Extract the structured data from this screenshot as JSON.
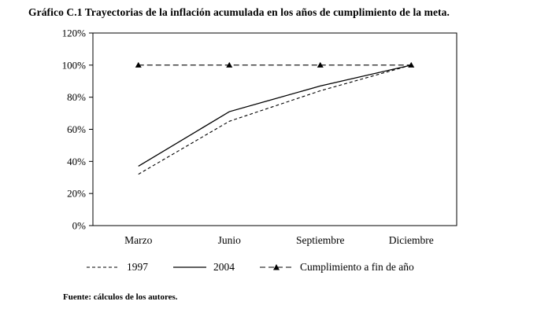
{
  "source_note": "Fuente: cálculos de los autores.",
  "chart_data": {
    "type": "line",
    "title": "Gráfico C.1 Trayectorias de la inflación acumulada en los años de cumplimiento de la meta.",
    "categories": [
      "Marzo",
      "Junio",
      "Septiembre",
      "Diciembre"
    ],
    "series": [
      {
        "name": "1997",
        "line_style": "dashed",
        "marker": "none",
        "values": [
          32,
          65,
          84,
          100
        ]
      },
      {
        "name": "2004",
        "line_style": "solid",
        "marker": "none",
        "values": [
          37,
          71,
          87,
          100
        ]
      },
      {
        "name": "Cumplimiento a fin de año",
        "line_style": "dashed",
        "marker": "triangle",
        "values": [
          100,
          100,
          100,
          100
        ]
      }
    ],
    "xlabel": "",
    "ylabel": "",
    "ylim": [
      0,
      120
    ],
    "ytick_step": 20,
    "ytick_suffix": "%",
    "grid": false,
    "legend_position": "bottom",
    "line_color": "#000000"
  }
}
